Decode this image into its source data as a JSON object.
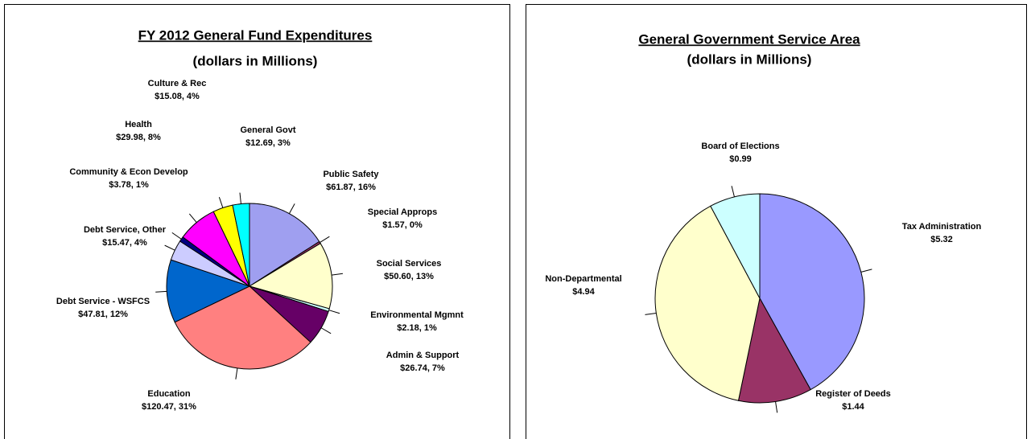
{
  "chart_data": [
    {
      "type": "pie",
      "title": "FY 2012 General Fund Expenditures",
      "subtitle": "(dollars in Millions)",
      "categories": [
        "Public Safety",
        "Special Approps",
        "Social Services",
        "Environmental Mgmnt",
        "Admin & Support",
        "Education",
        "Debt Service - WSFCS",
        "Debt Service, Other",
        "Community & Econ Develop",
        "Health",
        "Culture & Rec",
        "General Govt"
      ],
      "values": [
        61.87,
        1.57,
        50.6,
        2.18,
        26.74,
        120.47,
        47.81,
        15.47,
        3.78,
        29.98,
        15.08,
        12.69
      ],
      "value_labels": [
        "$61.87, 16%",
        "$1.57, 0%",
        "$50.60, 13%",
        "$2.18, 1%",
        "$26.74, 7%",
        "$120.47, 31%",
        "$47.81, 12%",
        "$15.47, 4%",
        "$3.78, 1%",
        "$29.98, 8%",
        "$15.08, 4%",
        "$12.69, 3%"
      ],
      "colors": [
        "#9f9ff0",
        "#993366",
        "#ffffcc",
        "#ccffff",
        "#660066",
        "#ff8080",
        "#0066cc",
        "#ccccff",
        "#000080",
        "#ff00ff",
        "#ffff00",
        "#00ffff"
      ]
    },
    {
      "type": "pie",
      "title": "General Government Service Area",
      "subtitle": "(dollars in Millions)",
      "categories": [
        "Tax Administration",
        "Register of Deeds",
        "Non-Departmental",
        "Board of Elections"
      ],
      "values": [
        5.32,
        1.44,
        4.94,
        0.99
      ],
      "value_labels": [
        "$5.32",
        "$1.44",
        "$4.94",
        "$0.99"
      ],
      "colors": [
        "#9999ff",
        "#993366",
        "#ffffcc",
        "#ccffff"
      ]
    }
  ]
}
